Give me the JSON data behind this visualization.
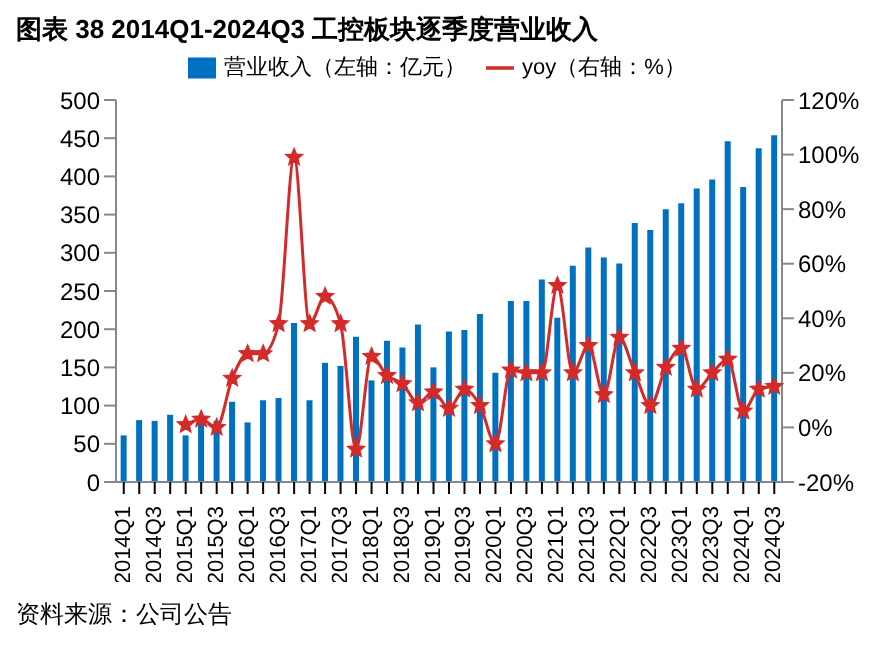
{
  "chart_data": {
    "type": "bar",
    "title": "图表 38 2014Q1-2024Q3 工控板块逐季度营业收入",
    "categories": [
      "2014Q1",
      null,
      "2014Q3",
      null,
      "2015Q1",
      null,
      "2015Q3",
      null,
      "2016Q1",
      null,
      "2016Q3",
      null,
      "2017Q1",
      null,
      "2017Q3",
      null,
      "2018Q1",
      null,
      "2018Q3",
      null,
      "2019Q1",
      null,
      "2019Q3",
      null,
      "2020Q1",
      null,
      "2020Q3",
      null,
      "2021Q1",
      null,
      "2021Q3",
      null,
      "2022Q1",
      null,
      "2022Q3",
      null,
      "2023Q1",
      null,
      "2023Q3",
      null,
      "2024Q1",
      null,
      "2024Q3"
    ],
    "series": [
      {
        "name": "营业收入（左轴：亿元）",
        "color": "#0070c0",
        "values": [
          61,
          81,
          80,
          88,
          61,
          78,
          80,
          105,
          78,
          107,
          110,
          208,
          107,
          156,
          152,
          190,
          133,
          185,
          176,
          206,
          150,
          197,
          199,
          220,
          143,
          237,
          237,
          265,
          215,
          283,
          307,
          294,
          286,
          339,
          330,
          357,
          365,
          384,
          396,
          446,
          386,
          437,
          454
        ]
      },
      {
        "name": "yoy（右轴：%）",
        "type": "line",
        "axis": "y2",
        "color": "#d42a2a",
        "values": [
          null,
          null,
          null,
          null,
          1,
          3,
          0,
          18,
          27,
          27,
          38,
          99,
          38,
          48,
          38,
          -8,
          26,
          19,
          16,
          9,
          13,
          7,
          14,
          8,
          -6,
          21,
          20,
          20,
          52,
          20,
          30,
          12,
          33,
          20,
          8,
          22,
          29,
          14,
          20,
          25,
          6,
          14,
          15
        ]
      }
    ],
    "ylim": [
      0,
      500
    ],
    "yticks": [
      0,
      50,
      100,
      150,
      200,
      250,
      300,
      350,
      400,
      450,
      500
    ],
    "y2lim": [
      -20,
      120
    ],
    "y2ticks": [
      {
        "value": -20,
        "label": "-20%"
      },
      {
        "value": 0,
        "label": "0%"
      },
      {
        "value": 20,
        "label": "20%"
      },
      {
        "value": 40,
        "label": "40%"
      },
      {
        "value": 60,
        "label": "60%"
      },
      {
        "value": 80,
        "label": "80%"
      },
      {
        "value": 100,
        "label": "100%"
      },
      {
        "value": 120,
        "label": "120%"
      }
    ],
    "legend": "top",
    "marker": "star",
    "annotations": [
      "资料来源：公司公告"
    ]
  }
}
